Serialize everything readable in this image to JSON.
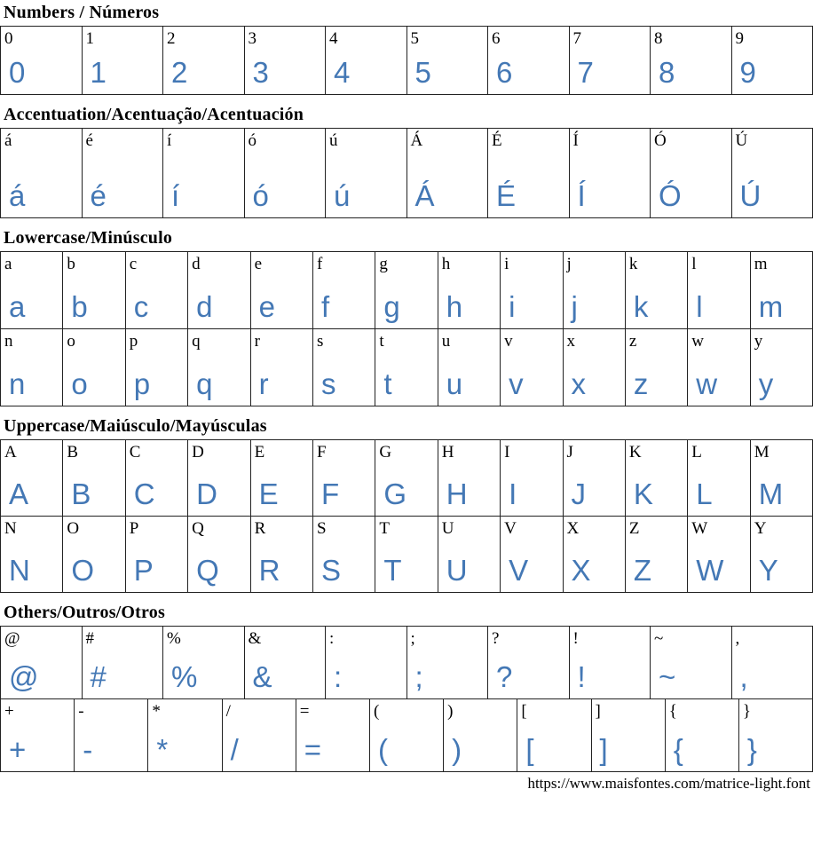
{
  "page": {
    "background": "#ffffff"
  },
  "colors": {
    "glyph_blue": "#4478b5",
    "label_black": "#000000",
    "border": "#222222"
  },
  "sections": [
    {
      "id": "numbers",
      "title": "Numbers / Números",
      "rows": [
        [
          "0",
          "1",
          "2",
          "3",
          "4",
          "5",
          "6",
          "7",
          "8",
          "9"
        ]
      ]
    },
    {
      "id": "accentuation",
      "title": "Accentuation/Acentuação/Acentuación",
      "rows": [
        [
          "á",
          "é",
          "í",
          "ó",
          "ú",
          "Á",
          "É",
          "Í",
          "Ó",
          "Ú"
        ]
      ]
    },
    {
      "id": "lowercase",
      "title": "Lowercase/Minúsculo",
      "rows": [
        [
          "a",
          "b",
          "c",
          "d",
          "e",
          "f",
          "g",
          "h",
          "i",
          "j",
          "k",
          "l",
          "m"
        ],
        [
          "n",
          "o",
          "p",
          "q",
          "r",
          "s",
          "t",
          "u",
          "v",
          "x",
          "z",
          "w",
          "y"
        ]
      ]
    },
    {
      "id": "uppercase",
      "title": "Uppercase/Maiúsculo/Mayúsculas",
      "rows": [
        [
          "A",
          "B",
          "C",
          "D",
          "E",
          "F",
          "G",
          "H",
          "I",
          "J",
          "K",
          "L",
          "M"
        ],
        [
          "N",
          "O",
          "P",
          "Q",
          "R",
          "S",
          "T",
          "U",
          "V",
          "X",
          "Z",
          "W",
          "Y"
        ]
      ]
    },
    {
      "id": "others",
      "title": "Others/Outros/Otros",
      "rows": [
        [
          "@",
          "#",
          "%",
          "&",
          ":",
          ";",
          "?",
          "!",
          "~",
          ","
        ],
        [
          "+",
          "-",
          "*",
          "/",
          "=",
          "(",
          ")",
          "[",
          "]",
          "{",
          "}"
        ]
      ]
    }
  ],
  "footer": {
    "url": "https://www.maisfontes.com/matrice-light.font"
  }
}
